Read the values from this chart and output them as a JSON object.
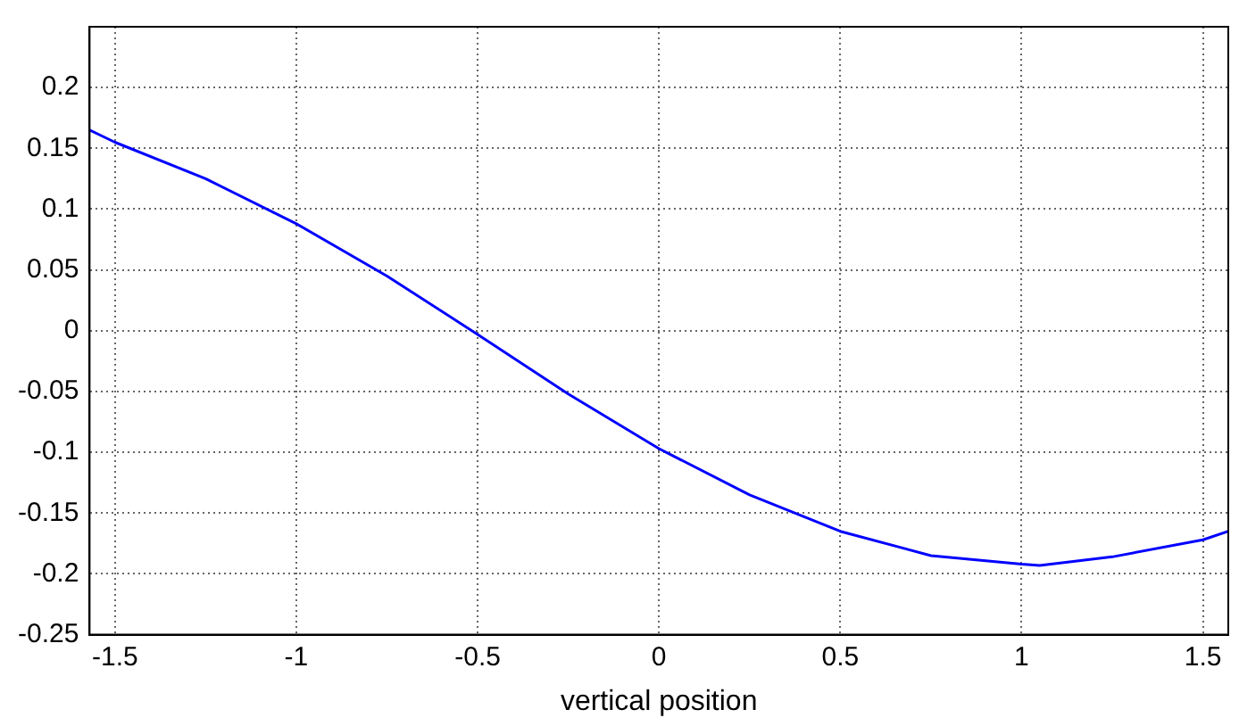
{
  "chart_data": {
    "type": "line",
    "xlabel": "vertical position",
    "x": [
      -1.57,
      -1.5,
      -1.25,
      -1,
      -0.75,
      -0.5,
      -0.25,
      0,
      0.25,
      0.5,
      0.75,
      1,
      1.05,
      1.25,
      1.5,
      1.57
    ],
    "series": [
      {
        "color": "#0000ff",
        "values": [
          0.165,
          0.155,
          0.125,
          0.088,
          0.045,
          -0.003,
          -0.052,
          -0.097,
          -0.135,
          -0.165,
          -0.185,
          -0.192,
          -0.193,
          -0.186,
          -0.172,
          -0.165
        ]
      }
    ],
    "xlim": [
      -1.57,
      1.57
    ],
    "xticks": [
      -1.5,
      -1,
      -0.5,
      0,
      0.5,
      1,
      1.5
    ],
    "ylim": [
      -0.25,
      0.25
    ],
    "yticks": [
      -0.25,
      -0.2,
      -0.15,
      -0.1,
      -0.05,
      0,
      0.05,
      0.1,
      0.15,
      0.2
    ],
    "grid": true,
    "legend": false,
    "marker": "none",
    "line_style": "solid"
  }
}
